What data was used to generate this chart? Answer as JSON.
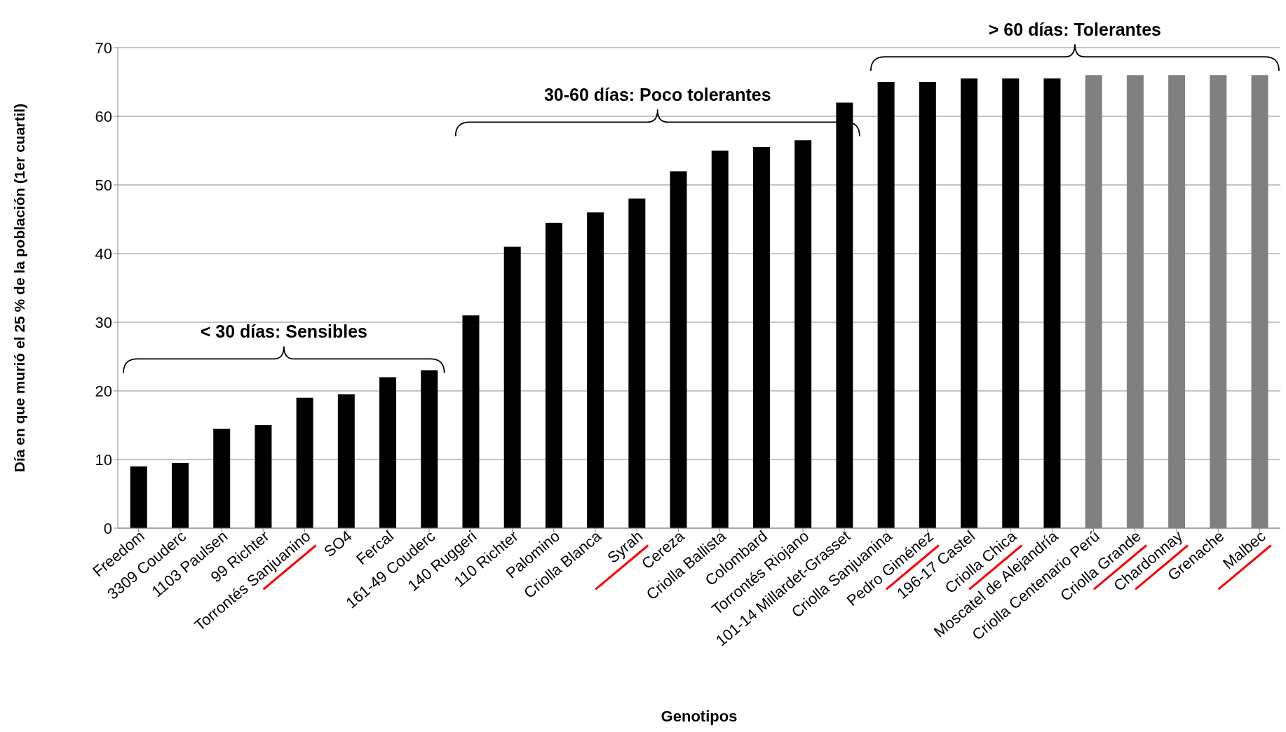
{
  "chart_data": {
    "type": "bar",
    "xlabel": "Genotipos",
    "ylabel": "Día en que murió el 25 % de la población  (1er cuartil)",
    "categories": [
      "Freedom",
      "3309 Couderc",
      "1103 Paulsen",
      "99 Richter",
      "Torrontés Sanjuanino",
      "SO4",
      "Fercal",
      "161-49 Couderc",
      "140 Ruggeri",
      "110 Richter",
      "Palomino",
      "Criolla Blanca",
      "Syrah",
      "Cereza",
      "Criolla Ballista",
      "Colombard",
      "Torrontés Riojano",
      "101-14 Millardet-Grasset",
      "Criolla Sanjuanina",
      "Pedro Giménez",
      "196-17 Castel",
      "Criolla Chica",
      "Moscatel de Alejandría",
      "Criolla Centenario Perú",
      "Criolla Grande",
      "Chardonnay",
      "Grenache",
      "Malbec"
    ],
    "values": [
      9,
      9.5,
      14.5,
      15,
      19,
      19.5,
      22,
      23,
      31,
      41,
      44.5,
      46,
      48,
      52,
      55,
      55.5,
      56.5,
      62,
      65,
      65,
      65.5,
      65.5,
      65.5,
      66,
      66,
      66,
      66,
      66
    ],
    "colors": [
      "#000000",
      "#000000",
      "#000000",
      "#000000",
      "#000000",
      "#000000",
      "#000000",
      "#000000",
      "#000000",
      "#000000",
      "#000000",
      "#000000",
      "#000000",
      "#000000",
      "#000000",
      "#000000",
      "#000000",
      "#000000",
      "#000000",
      "#000000",
      "#000000",
      "#000000",
      "#000000",
      "#808080",
      "#808080",
      "#808080",
      "#808080",
      "#808080"
    ],
    "ylim": [
      0,
      70
    ],
    "yticks": [
      0,
      10,
      20,
      30,
      40,
      50,
      60,
      70
    ],
    "grid": "y",
    "legend": false,
    "annotations": [
      "< 30 días: Sensibles",
      "30-60 días: Poco tolerantes",
      "> 60 días: Tolerantes"
    ]
  }
}
